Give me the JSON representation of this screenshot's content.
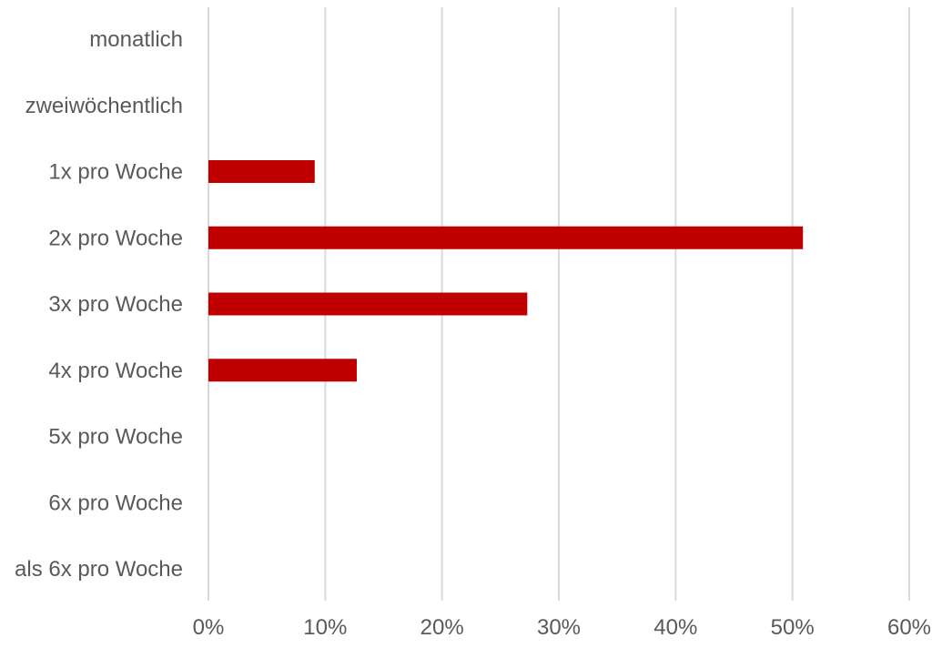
{
  "chart_data": {
    "type": "bar",
    "orientation": "horizontal",
    "categories": [
      "monatlich",
      "zweiwöchentlich",
      "1x pro Woche",
      "2x pro Woche",
      "3x pro Woche",
      "4x pro Woche",
      "5x pro Woche",
      "6x pro Woche",
      "als 6x pro Woche"
    ],
    "values": [
      0,
      0,
      9.1,
      50.9,
      27.3,
      12.7,
      0,
      0,
      0
    ],
    "xlim": [
      0,
      60
    ],
    "x_ticks": [
      0,
      10,
      20,
      30,
      40,
      50,
      60
    ],
    "x_tick_labels": [
      "0%",
      "10%",
      "20%",
      "30%",
      "40%",
      "50%",
      "60%"
    ],
    "grid": "vertical",
    "bar_color": "#c00000",
    "grid_color": "#d9d9d9",
    "label_color": "#595959",
    "title": "",
    "xlabel": "",
    "ylabel": ""
  }
}
